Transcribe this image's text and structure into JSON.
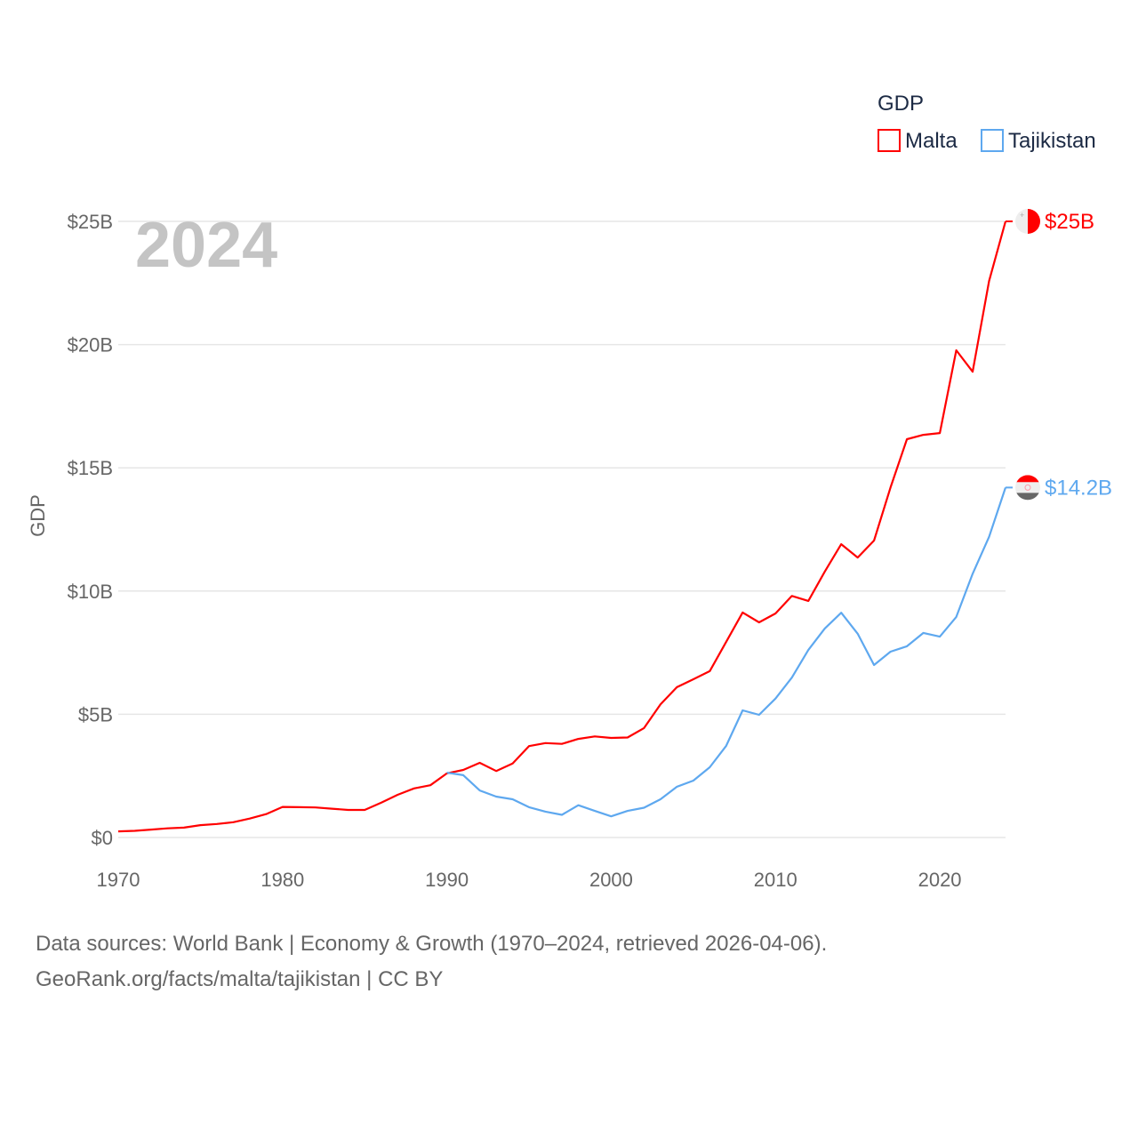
{
  "chart_data": {
    "type": "line",
    "title": "GDP",
    "year_label": "2024",
    "ylabel": "GDP",
    "xlabel": "",
    "xlim": [
      1970,
      2024
    ],
    "ylim": [
      0,
      25
    ],
    "y_unit": "billion USD",
    "x_ticks": [
      "1970",
      "1980",
      "1990",
      "2000",
      "2010",
      "2020"
    ],
    "x_tick_values": [
      1970,
      1980,
      1990,
      2000,
      2010,
      2020
    ],
    "y_ticks": [
      "$0",
      "$5B",
      "$10B",
      "$15B",
      "$20B",
      "$25B"
    ],
    "y_tick_values": [
      0,
      5,
      10,
      15,
      20,
      25
    ],
    "grid": true,
    "legend": {
      "title": "GDP",
      "position": "top-right"
    },
    "series": [
      {
        "name": "Malta",
        "color": "#ff0000",
        "end_label": "$25B",
        "flag_icon": "malta-flag-icon",
        "start_year": 1970,
        "values": [
          0.25,
          0.27,
          0.32,
          0.37,
          0.4,
          0.5,
          0.55,
          0.62,
          0.77,
          0.95,
          1.24,
          1.23,
          1.22,
          1.17,
          1.12,
          1.12,
          1.41,
          1.73,
          1.99,
          2.12,
          2.6,
          2.74,
          3.03,
          2.7,
          3.0,
          3.71,
          3.83,
          3.8,
          4.0,
          4.1,
          4.04,
          4.06,
          4.44,
          5.4,
          6.1,
          6.42,
          6.75,
          7.94,
          9.13,
          8.73,
          9.09,
          9.8,
          9.6,
          10.79,
          11.9,
          11.36,
          12.05,
          14.2,
          16.16,
          16.34,
          16.41,
          19.77,
          18.9,
          22.58,
          25.0
        ]
      },
      {
        "name": "Tajikistan",
        "color": "#5ea8ef",
        "end_label": "$14.2B",
        "flag_icon": "tajikistan-flag-icon",
        "start_year": 1990,
        "values": [
          2.63,
          2.53,
          1.91,
          1.66,
          1.55,
          1.23,
          1.05,
          0.92,
          1.31,
          1.08,
          0.86,
          1.08,
          1.21,
          1.55,
          2.06,
          2.31,
          2.85,
          3.72,
          5.16,
          4.98,
          5.64,
          6.49,
          7.61,
          8.48,
          9.12,
          8.27,
          7.0,
          7.54,
          7.76,
          8.3,
          8.15,
          8.95,
          10.7,
          12.2,
          14.2
        ]
      }
    ]
  },
  "footer": {
    "line1": "Data sources: World Bank | Economy & Growth (1970–2024, retrieved 2026-04-06).",
    "line2": "GeoRank.org/facts/malta/tajikistan | CC BY"
  }
}
